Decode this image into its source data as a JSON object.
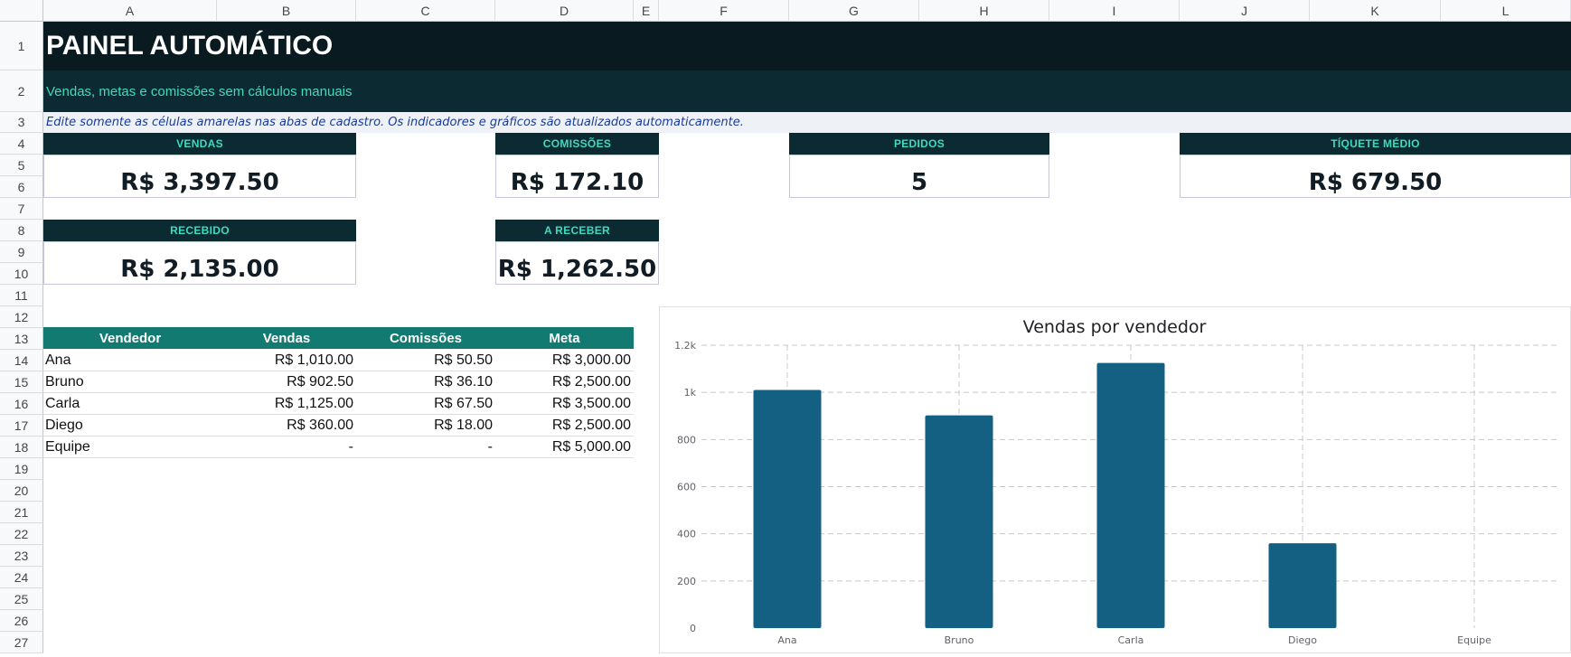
{
  "columns": [
    "A",
    "B",
    "C",
    "D",
    "E",
    "F",
    "G",
    "H",
    "I",
    "J",
    "K",
    "L"
  ],
  "rows": [
    "1",
    "2",
    "3",
    "4",
    "5",
    "6",
    "7",
    "8",
    "9",
    "10",
    "11",
    "12",
    "13",
    "14",
    "15",
    "16",
    "17",
    "18",
    "19",
    "20",
    "21",
    "22",
    "23",
    "24",
    "25",
    "26",
    "27"
  ],
  "header": {
    "title": "PAINEL AUTOMÁTICO",
    "subtitle": "Vendas, metas e comissões sem cálculos manuais",
    "note": "Edite somente as células amarelas nas abas de cadastro. Os indicadores e gráficos são atualizados automaticamente."
  },
  "kpis": {
    "vendas": {
      "label": "VENDAS",
      "value": "R$ 3,397.50"
    },
    "comissoes": {
      "label": "COMISSÕES",
      "value": "R$ 172.10"
    },
    "pedidos": {
      "label": "PEDIDOS",
      "value": "5"
    },
    "tiquete": {
      "label": "TÍQUETE MÉDIO",
      "value": "R$ 679.50"
    },
    "recebido": {
      "label": "RECEBIDO",
      "value": "R$ 2,135.00"
    },
    "a_receber": {
      "label": "A RECEBER",
      "value": "R$ 1,262.50"
    }
  },
  "table": {
    "headers": [
      "Vendedor",
      "Vendas",
      "Comissões",
      "Meta"
    ],
    "rows": [
      [
        "Ana",
        "R$ 1,010.00",
        "R$ 50.50",
        "R$ 3,000.00"
      ],
      [
        "Bruno",
        "R$ 902.50",
        "R$ 36.10",
        "R$ 2,500.00"
      ],
      [
        "Carla",
        "R$ 1,125.00",
        "R$ 67.50",
        "R$ 3,500.00"
      ],
      [
        "Diego",
        "R$ 360.00",
        "R$ 18.00",
        "R$ 2,500.00"
      ],
      [
        "Equipe",
        "-",
        "-",
        "R$ 5,000.00"
      ]
    ]
  },
  "chart_data": {
    "type": "bar",
    "title": "Vendas por vendedor",
    "categories": [
      "Ana",
      "Bruno",
      "Carla",
      "Diego",
      "Equipe"
    ],
    "values": [
      1010,
      902.5,
      1125,
      360,
      0
    ],
    "yticks": [
      "0",
      "200",
      "400",
      "600",
      "800",
      "1k",
      "1.2k"
    ],
    "ylim": [
      0,
      1200
    ],
    "grid": true,
    "bar_color": "#136083"
  }
}
